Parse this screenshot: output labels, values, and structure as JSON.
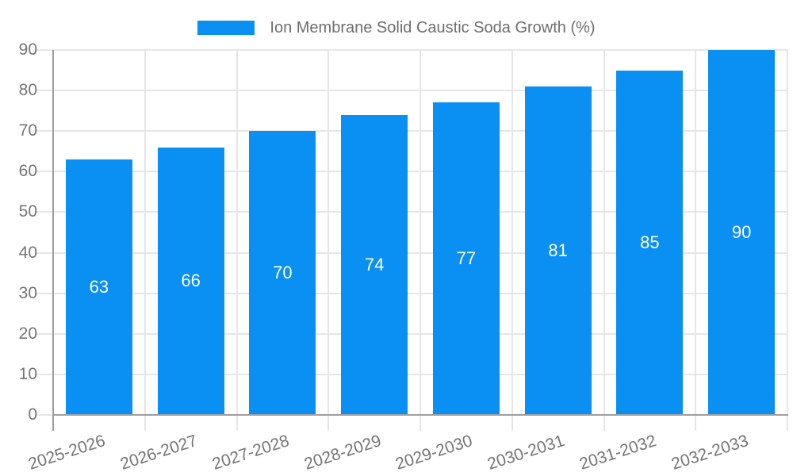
{
  "chart_data": {
    "type": "bar",
    "title": "Ion Membrane Solid Caustic Soda Growth (%)",
    "categories": [
      "2025-2026",
      "2026-2027",
      "2027-2028",
      "2028-2029",
      "2029-2030",
      "2030-2031",
      "2031-2032",
      "2032-2033"
    ],
    "series": [
      {
        "name": "Ion Membrane Solid Caustic Soda Growth (%)",
        "values": [
          63,
          66,
          70,
          74,
          77,
          81,
          85,
          90
        ]
      }
    ],
    "xlabel": "",
    "ylabel": "",
    "ylim": [
      0,
      90
    ],
    "yticks": [
      0,
      10,
      20,
      30,
      40,
      50,
      60,
      70,
      80,
      90
    ],
    "grid": true,
    "legend_position": "top-center",
    "value_labels": "inside-middle",
    "colors": {
      "bar": "#0a8ff2",
      "axis": "#9e9e9e",
      "grid": "#e6e6e6",
      "tick_label": "#757575",
      "legend_text": "#6e6e6e",
      "value_label": "#ffffff",
      "background": "#ffffff"
    }
  }
}
